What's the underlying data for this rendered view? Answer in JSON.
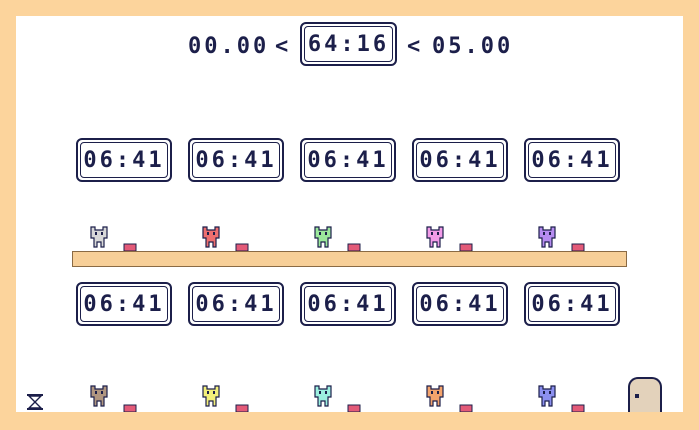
{
  "header": {
    "range_min": "00.00",
    "separator_left": "<",
    "current_time": "64:16",
    "separator_right": "<",
    "range_max": "05.00"
  },
  "timers_top": [
    "06:41",
    "06:41",
    "06:41",
    "06:41",
    "06:41"
  ],
  "timers_bottom": [
    "06:41",
    "06:41",
    "06:41",
    "06:41",
    "06:41"
  ],
  "players_top": [
    {
      "icon": "gray-cat-icon",
      "color": "#d8d8d8"
    },
    {
      "icon": "red-cat-icon",
      "color": "#ee6f6f"
    },
    {
      "icon": "green-cat-icon",
      "color": "#9be89b"
    },
    {
      "icon": "pink-cat-icon",
      "color": "#f29be8"
    },
    {
      "icon": "purple-cat-icon",
      "color": "#b68cf0"
    }
  ],
  "players_bottom": [
    {
      "icon": "brown-cat-icon",
      "color": "#b09680"
    },
    {
      "icon": "yellow-cat-icon",
      "color": "#f4f07a"
    },
    {
      "icon": "cyan-cat-icon",
      "color": "#9cf0df"
    },
    {
      "icon": "orange-cat-icon",
      "color": "#f4a46c"
    },
    {
      "icon": "blue-cat-icon",
      "color": "#8c90f0"
    }
  ],
  "colors": {
    "background": "#fcd49c",
    "panel": "#ffffff",
    "ink": "#1c1f4a",
    "shelf": "#f7cf98",
    "button": "#e35a78",
    "door": "#e3d2bb"
  },
  "icons": {
    "hourglass": "hourglass-icon",
    "door": "exit-door-icon",
    "button": "pressure-button-icon"
  }
}
